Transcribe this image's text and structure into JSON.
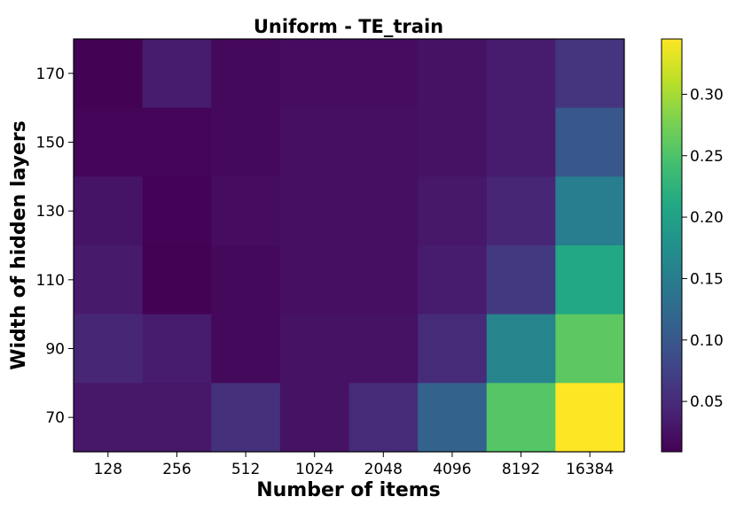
{
  "chart_data": {
    "type": "heatmap",
    "title": "Uniform - TE_train",
    "xlabel": "Number of items",
    "ylabel": "Width of hidden layers",
    "x_categories": [
      "128",
      "256",
      "512",
      "1024",
      "2048",
      "4096",
      "8192",
      "16384"
    ],
    "y_categories": [
      "170",
      "150",
      "130",
      "110",
      "90",
      "70"
    ],
    "values": [
      [
        0.01,
        0.035,
        0.017,
        0.02,
        0.02,
        0.025,
        0.035,
        0.06
      ],
      [
        0.013,
        0.012,
        0.017,
        0.022,
        0.022,
        0.025,
        0.035,
        0.1
      ],
      [
        0.027,
        0.011,
        0.02,
        0.022,
        0.022,
        0.03,
        0.045,
        0.15
      ],
      [
        0.033,
        0.01,
        0.017,
        0.022,
        0.022,
        0.035,
        0.065,
        0.21
      ],
      [
        0.045,
        0.035,
        0.017,
        0.025,
        0.025,
        0.05,
        0.16,
        0.26
      ],
      [
        0.03,
        0.03,
        0.055,
        0.025,
        0.05,
        0.115,
        0.255,
        0.345
      ]
    ],
    "colorbar": {
      "colormap": "viridis",
      "range": [
        0.009,
        0.345
      ],
      "ticks": [
        "0.05",
        "0.10",
        "0.15",
        "0.20",
        "0.25",
        "0.30"
      ]
    }
  }
}
